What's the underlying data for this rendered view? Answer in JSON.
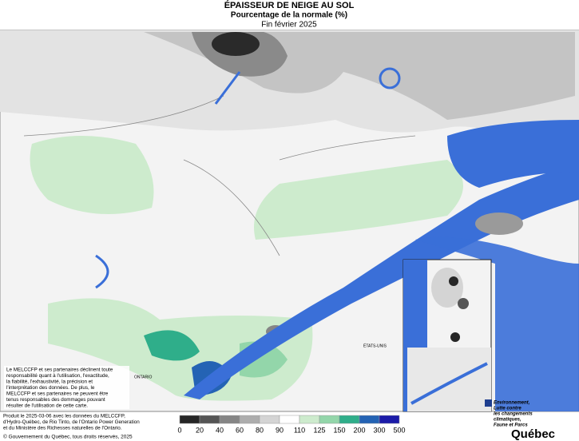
{
  "header": {
    "title": "ÉPAISSEUR DE NEIGE AU SOL",
    "subtitle": "Pourcentage de la normale (%)",
    "date": "Fin février 2025"
  },
  "map": {
    "labels": {
      "ontario": "ONTARIO",
      "usa": "ÉTATS-UNIS"
    }
  },
  "disclaimer": [
    "Le MELCCFP et ses partenaires déclinent toute",
    "responsabilité quant à l'utilisation, l'exactitude,",
    "la fiabilité, l'exhaustivité, la précision et",
    "l'interprétation des données. De plus, le",
    "MELCCFP et ses partenaires ne peuvent être",
    "tenus responsables des dommages pouvant",
    "résulter de l'utilisation de cette carte."
  ],
  "legend": {
    "colors": [
      "#262626",
      "#555555",
      "#858585",
      "#adadad",
      "#d4d4d4",
      "#ffffff",
      "#cdebcd",
      "#93d6aa",
      "#2fae8a",
      "#2463b4",
      "#1b1ba8"
    ],
    "labels": [
      "0",
      "20",
      "40",
      "60",
      "80",
      "90",
      "110",
      "125",
      "150",
      "200",
      "300",
      "500"
    ]
  },
  "footer": {
    "credits": [
      "Produit le 2025-03-06 avec les données du MELCCFP,",
      "d'Hydro-Québec, de Rio Tinto, de l'Ontario Power Generation",
      "et du Ministère des Richesses naturelles de l'Ontario."
    ],
    "copyright": "© Gouvernement du Québec, tous droits réservés, 2025"
  },
  "logo": {
    "lines": [
      "Environnement,",
      "Lutte contre",
      "les changements",
      "climatiques,",
      "Faune et Parcs"
    ],
    "name": "Québec"
  }
}
